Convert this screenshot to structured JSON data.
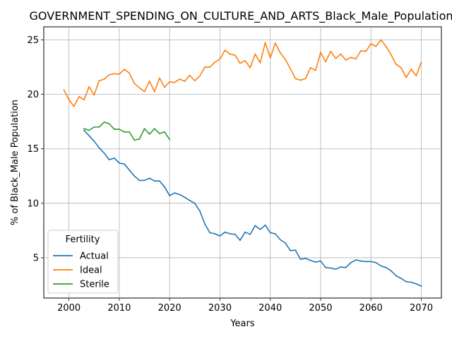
{
  "chart_data": {
    "type": "line",
    "title": "GOVERNMENT_SPENDING_ON_CULTURE_AND_ARTS_Black_Male_Population_Sc",
    "xlabel": "Years",
    "ylabel": "% of Black_Male Population",
    "xlim": [
      1995,
      2074
    ],
    "ylim": [
      1.3,
      26.2
    ],
    "xticks": [
      2000,
      2010,
      2020,
      2030,
      2040,
      2050,
      2060,
      2070
    ],
    "yticks": [
      5,
      10,
      15,
      20,
      25
    ],
    "grid": true,
    "legend": {
      "title": "Fertility",
      "position": "lower-left"
    },
    "series": [
      {
        "name": "Actual",
        "color": "#1f77b4",
        "x": [
          2003,
          2004,
          2005,
          2006,
          2007,
          2008,
          2009,
          2010,
          2011,
          2012,
          2013,
          2014,
          2015,
          2016,
          2017,
          2018,
          2019,
          2020,
          2021,
          2022,
          2023,
          2024,
          2025,
          2026,
          2027,
          2028,
          2029,
          2030,
          2031,
          2032,
          2033,
          2034,
          2035,
          2036,
          2037,
          2038,
          2039,
          2040,
          2041,
          2042,
          2043,
          2044,
          2045,
          2046,
          2047,
          2048,
          2049,
          2050,
          2051,
          2052,
          2053,
          2054,
          2055,
          2056,
          2057,
          2058,
          2059,
          2060,
          2061,
          2062,
          2063,
          2064,
          2065,
          2066,
          2067,
          2068,
          2069,
          2070
        ],
        "y": [
          16.7,
          16.2,
          15.7,
          15.1,
          14.6,
          14.0,
          14.15,
          13.7,
          13.6,
          13.05,
          12.5,
          12.1,
          12.1,
          12.3,
          12.05,
          12.05,
          11.5,
          10.7,
          10.95,
          10.8,
          10.55,
          10.25,
          10.0,
          9.3,
          8.1,
          7.3,
          7.2,
          7.0,
          7.35,
          7.2,
          7.15,
          6.6,
          7.35,
          7.15,
          7.95,
          7.6,
          8.0,
          7.3,
          7.2,
          6.65,
          6.35,
          5.65,
          5.7,
          4.85,
          4.95,
          4.75,
          4.6,
          4.7,
          4.1,
          4.05,
          3.95,
          4.15,
          4.1,
          4.55,
          4.8,
          4.7,
          4.65,
          4.65,
          4.55,
          4.25,
          4.1,
          3.8,
          3.35,
          3.1,
          2.8,
          2.75,
          2.6,
          2.4
        ]
      },
      {
        "name": "Ideal",
        "color": "#ff7f0e",
        "x": [
          1999,
          2000,
          2001,
          2002,
          2003,
          2004,
          2005,
          2006,
          2007,
          2008,
          2009,
          2010,
          2011,
          2012,
          2013,
          2014,
          2015,
          2016,
          2017,
          2018,
          2019,
          2020,
          2021,
          2022,
          2023,
          2024,
          2025,
          2026,
          2027,
          2028,
          2029,
          2030,
          2031,
          2032,
          2033,
          2034,
          2035,
          2036,
          2037,
          2038,
          2039,
          2040,
          2041,
          2042,
          2043,
          2044,
          2045,
          2046,
          2047,
          2048,
          2049,
          2050,
          2051,
          2052,
          2053,
          2054,
          2055,
          2056,
          2057,
          2058,
          2059,
          2060,
          2061,
          2062,
          2063,
          2064,
          2065,
          2066,
          2067,
          2068,
          2069,
          2070
        ],
        "y": [
          20.4,
          19.5,
          18.9,
          19.8,
          19.5,
          20.7,
          19.95,
          21.25,
          21.4,
          21.8,
          21.9,
          21.85,
          22.3,
          21.95,
          21.0,
          20.6,
          20.25,
          21.2,
          20.25,
          21.5,
          20.65,
          21.15,
          21.1,
          21.4,
          21.2,
          21.75,
          21.25,
          21.7,
          22.5,
          22.5,
          22.95,
          23.25,
          24.05,
          23.7,
          23.6,
          22.85,
          23.1,
          22.45,
          23.7,
          22.9,
          24.75,
          23.35,
          24.7,
          23.8,
          23.2,
          22.35,
          21.45,
          21.3,
          21.45,
          22.45,
          22.2,
          23.85,
          23.0,
          23.95,
          23.3,
          23.7,
          23.15,
          23.4,
          23.25,
          24.0,
          23.95,
          24.65,
          24.4,
          25.0,
          24.4,
          23.65,
          22.75,
          22.45,
          21.55,
          22.3,
          21.7,
          22.95
        ]
      },
      {
        "name": "Sterile",
        "color": "#2ca02c",
        "x": [
          2003,
          2004,
          2005,
          2006,
          2007,
          2008,
          2009,
          2010,
          2011,
          2012,
          2013,
          2014,
          2015,
          2016,
          2017,
          2018,
          2019,
          2020
        ],
        "y": [
          16.85,
          16.7,
          17.0,
          17.0,
          17.45,
          17.3,
          16.8,
          16.8,
          16.55,
          16.55,
          15.8,
          15.9,
          16.85,
          16.35,
          16.85,
          16.4,
          16.55,
          15.85
        ]
      }
    ]
  }
}
